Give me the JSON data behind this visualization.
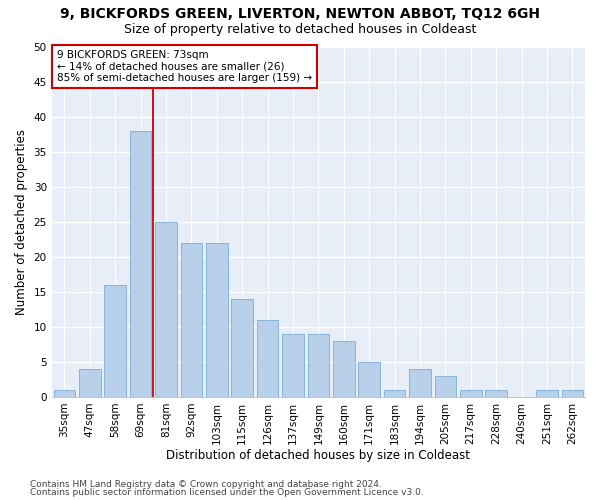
{
  "title1": "9, BICKFORDS GREEN, LIVERTON, NEWTON ABBOT, TQ12 6GH",
  "title2": "Size of property relative to detached houses in Coldeast",
  "xlabel": "Distribution of detached houses by size in Coldeast",
  "ylabel": "Number of detached properties",
  "categories": [
    "35sqm",
    "47sqm",
    "58sqm",
    "69sqm",
    "81sqm",
    "92sqm",
    "103sqm",
    "115sqm",
    "126sqm",
    "137sqm",
    "149sqm",
    "160sqm",
    "171sqm",
    "183sqm",
    "194sqm",
    "205sqm",
    "217sqm",
    "228sqm",
    "240sqm",
    "251sqm",
    "262sqm"
  ],
  "values": [
    1,
    4,
    16,
    38,
    25,
    22,
    22,
    14,
    11,
    9,
    9,
    8,
    5,
    1,
    4,
    3,
    1,
    1,
    0,
    1,
    1
  ],
  "bar_color": "#b8d0ea",
  "bar_edge_color": "#7aadd4",
  "vline_color": "#cc0000",
  "annotation_text": "9 BICKFORDS GREEN: 73sqm\n← 14% of detached houses are smaller (26)\n85% of semi-detached houses are larger (159) →",
  "annotation_box_color": "#ffffff",
  "annotation_box_edge": "#cc0000",
  "ylim": [
    0,
    50
  ],
  "yticks": [
    0,
    5,
    10,
    15,
    20,
    25,
    30,
    35,
    40,
    45,
    50
  ],
  "bg_color": "#e8eef8",
  "grid_color": "#ffffff",
  "footer1": "Contains HM Land Registry data © Crown copyright and database right 2024.",
  "footer2": "Contains public sector information licensed under the Open Government Licence v3.0.",
  "title1_fontsize": 10,
  "title2_fontsize": 9,
  "xlabel_fontsize": 8.5,
  "ylabel_fontsize": 8.5,
  "tick_fontsize": 7.5,
  "annotation_fontsize": 7.5,
  "footer_fontsize": 6.5
}
